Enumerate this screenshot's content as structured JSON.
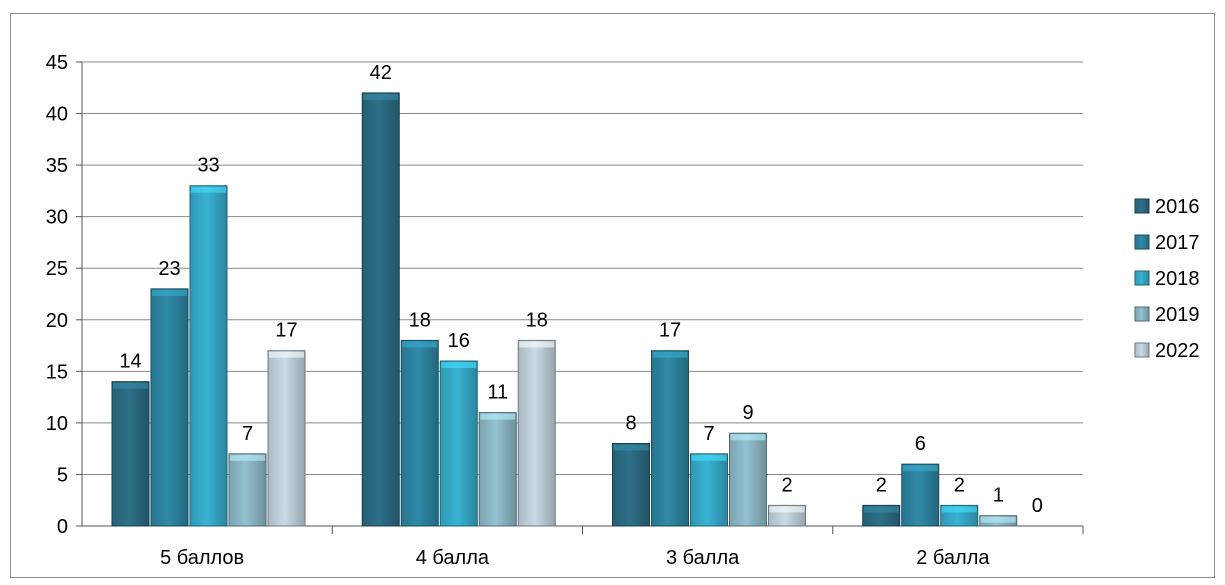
{
  "chart_data": {
    "type": "bar",
    "title": "",
    "xlabel": "",
    "ylabel": "",
    "categories": [
      "5 баллов",
      "4 балла",
      "3 балла",
      "2 балла"
    ],
    "ylim": [
      0,
      45
    ],
    "yticks": [
      0,
      5,
      10,
      15,
      20,
      25,
      30,
      35,
      40,
      45
    ],
    "grid": true,
    "legend_position": "right",
    "series": [
      {
        "name": "2016",
        "values": [
          14,
          42,
          8,
          2
        ],
        "color": "#2d7088"
      },
      {
        "name": "2017",
        "values": [
          23,
          18,
          17,
          6
        ],
        "color": "#2f8aa8"
      },
      {
        "name": "2018",
        "values": [
          33,
          16,
          7,
          2
        ],
        "color": "#38b3d3"
      },
      {
        "name": "2019",
        "values": [
          7,
          11,
          9,
          1
        ],
        "color": "#93c1d0"
      },
      {
        "name": "2022",
        "values": [
          17,
          18,
          2,
          0
        ],
        "color": "#c8dbe6"
      }
    ]
  }
}
